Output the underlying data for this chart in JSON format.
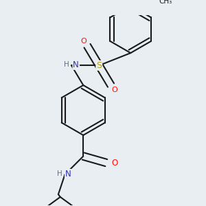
{
  "bg_color": "#e8eef2",
  "bond_color": "#1a1a1a",
  "bond_width": 1.5,
  "dbo": 0.055,
  "atom_colors": {
    "N": "#3030b0",
    "O": "#ff1010",
    "S": "#b8a000",
    "H": "#607080",
    "C": "#1a1a1a"
  },
  "fs": 8.5
}
